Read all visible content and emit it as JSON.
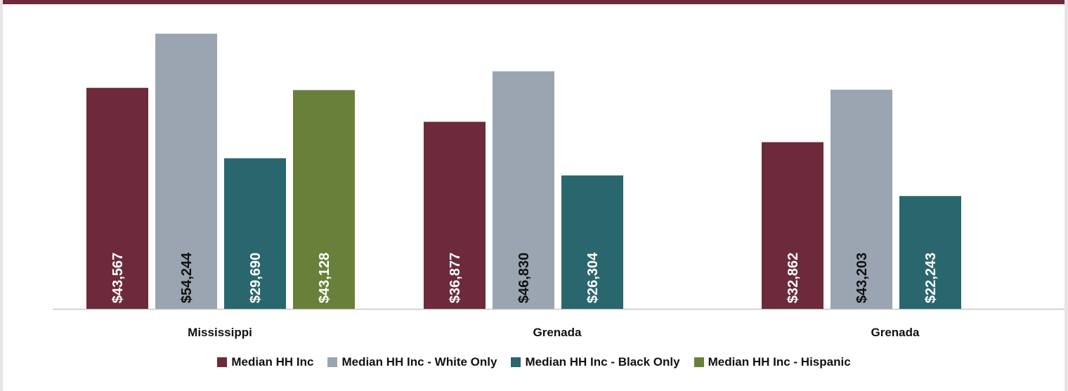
{
  "chart_data": {
    "type": "bar",
    "categories": [
      "Mississippi",
      "Grenada",
      "Grenada"
    ],
    "series": [
      {
        "name": "Median HH Inc",
        "color": "#6d2a3a",
        "values": [
          43567,
          36877,
          32862
        ],
        "labels": [
          "$43,567",
          "$36,877",
          "$32,862"
        ],
        "label_color": "#ffffff"
      },
      {
        "name": "Median HH Inc - White Only",
        "color": "#9aa5b1",
        "values": [
          54244,
          46830,
          43203
        ],
        "labels": [
          "$54,244",
          "$46,830",
          "$43,203"
        ],
        "label_color": "#111111"
      },
      {
        "name": "Median HH Inc - Black Only",
        "color": "#2a666d",
        "values": [
          29690,
          26304,
          22243
        ],
        "labels": [
          "$29,690",
          "$26,304",
          "$22,243"
        ],
        "label_color": "#ffffff"
      },
      {
        "name": "Median HH Inc - Hispanic",
        "color": "#69803a",
        "values": [
          43128,
          null,
          null
        ],
        "labels": [
          "$43,128",
          "",
          ""
        ],
        "label_color": "#ffffff"
      }
    ],
    "ylim": [
      0,
      54244
    ],
    "grid": false,
    "legend_position": "bottom"
  }
}
